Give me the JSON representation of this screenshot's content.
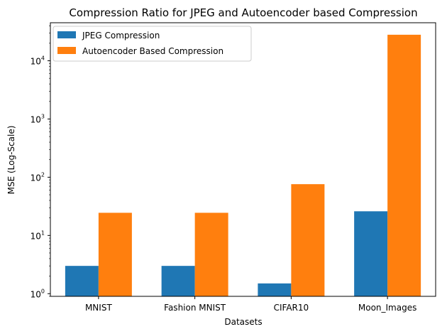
{
  "chart_data": {
    "type": "bar",
    "title": "Compression Ratio for JPEG and Autoencoder based Compression",
    "xlabel": "Datasets",
    "ylabel": "MSE (Log-Scale)",
    "yscale": "log",
    "ylim": [
      0.9,
      45000
    ],
    "yticks": [
      {
        "value": 1,
        "base": "10",
        "exp": "0"
      },
      {
        "value": 10,
        "base": "10",
        "exp": "1"
      },
      {
        "value": 100,
        "base": "10",
        "exp": "2"
      },
      {
        "value": 1000,
        "base": "10",
        "exp": "3"
      },
      {
        "value": 10000,
        "base": "10",
        "exp": "4"
      }
    ],
    "categories": [
      "MNIST",
      "Fashion MNIST",
      "CIFAR10",
      "Moon_Images"
    ],
    "series": [
      {
        "name": "JPEG Compression",
        "color": "#1f77b4",
        "values": [
          3.0,
          3.0,
          1.5,
          26
        ]
      },
      {
        "name": "Autoencoder Based Compression",
        "color": "#ff7f0e",
        "values": [
          24.5,
          24.5,
          76,
          28000
        ]
      }
    ],
    "grid": false,
    "legend_position": "top-left"
  }
}
